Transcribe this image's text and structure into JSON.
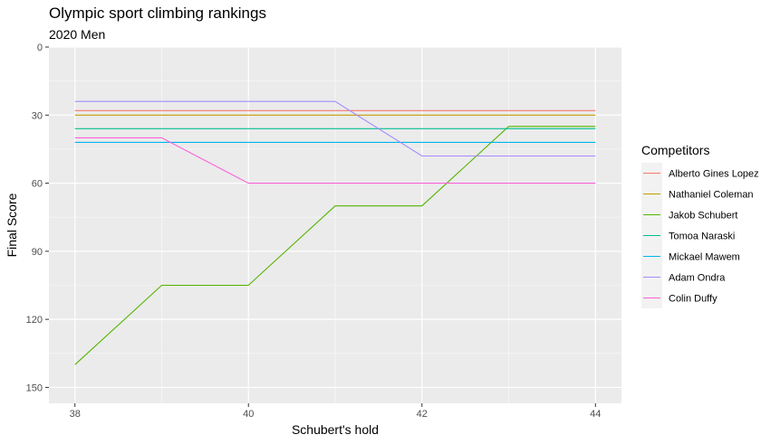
{
  "chart_data": {
    "type": "line",
    "title": "Olympic sport climbing rankings",
    "subtitle": "2020 Men",
    "xlabel": "Schubert's hold",
    "ylabel": "Final Score",
    "xlim": [
      37.7,
      44.3
    ],
    "ylim": [
      0,
      157
    ],
    "y_reversed": true,
    "x_ticks": [
      38,
      40,
      42,
      44
    ],
    "y_ticks": [
      0,
      30,
      60,
      90,
      120,
      150
    ],
    "x_minor_ticks": [
      39,
      41,
      43
    ],
    "y_minor_ticks": [
      15,
      45,
      75,
      105,
      135
    ],
    "grid": true,
    "legend": {
      "title": "Competitors",
      "position": "right"
    },
    "panel_color": "#ebebeb",
    "series": [
      {
        "name": "Alberto Gines Lopez",
        "color": "#F8766D",
        "x": [
          38,
          39,
          40,
          41,
          42,
          43,
          44
        ],
        "values": [
          28,
          28,
          28,
          28,
          28,
          28,
          28
        ]
      },
      {
        "name": "Nathaniel Coleman",
        "color": "#C49A00",
        "x": [
          38,
          39,
          40,
          41,
          42,
          43,
          44
        ],
        "values": [
          30,
          30,
          30,
          30,
          30,
          30,
          30
        ]
      },
      {
        "name": "Jakob Schubert",
        "color": "#53B400",
        "x": [
          38,
          39,
          40,
          41,
          42,
          43,
          44
        ],
        "values": [
          140,
          105,
          105,
          70,
          70,
          35,
          35
        ]
      },
      {
        "name": "Tomoa Naraski",
        "color": "#00C094",
        "x": [
          38,
          39,
          40,
          41,
          42,
          43,
          44
        ],
        "values": [
          36,
          36,
          36,
          36,
          36,
          36,
          36
        ]
      },
      {
        "name": "Mickael Mawem",
        "color": "#00B6EB",
        "x": [
          38,
          39,
          40,
          41,
          42,
          43,
          44
        ],
        "values": [
          42,
          42,
          42,
          42,
          42,
          42,
          42
        ]
      },
      {
        "name": "Adam Ondra",
        "color": "#A58AFF",
        "x": [
          38,
          39,
          40,
          41,
          42,
          43,
          44
        ],
        "values": [
          24,
          24,
          24,
          24,
          48,
          48,
          48
        ]
      },
      {
        "name": "Colin Duffy",
        "color": "#FB61D7",
        "x": [
          38,
          39,
          40,
          41,
          42,
          43,
          44
        ],
        "values": [
          40,
          40,
          60,
          60,
          60,
          60,
          60
        ]
      }
    ]
  }
}
